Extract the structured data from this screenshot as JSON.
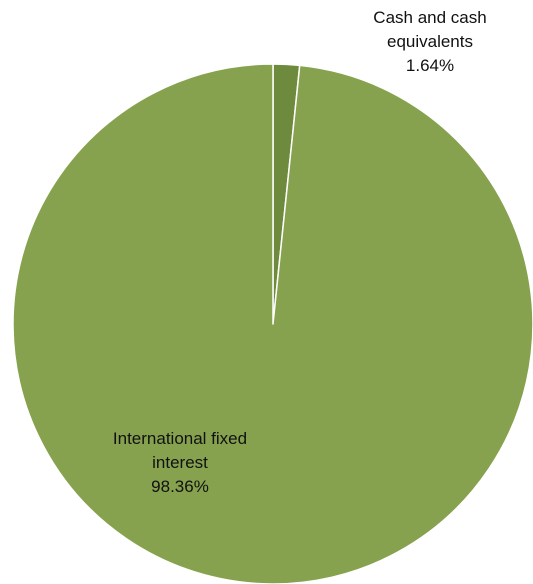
{
  "chart_data": {
    "type": "pie",
    "title": "",
    "slices": [
      {
        "name": "Cash and cash equivalents",
        "value": 1.64,
        "display_value": "1.64%",
        "color": "#6e8b3d"
      },
      {
        "name": "International fixed interest",
        "value": 98.36,
        "display_value": "98.36%",
        "color": "#86a24e"
      }
    ],
    "start_angle": "12 o'clock",
    "direction": "clockwise",
    "slice_border_color": "#ffffff",
    "legend": "none"
  },
  "labels": {
    "cash": {
      "line1": "Cash and cash",
      "line2": "equivalents",
      "value": "1.64%"
    },
    "intl": {
      "line1": "International fixed",
      "line2": "interest",
      "value": "98.36%"
    }
  }
}
